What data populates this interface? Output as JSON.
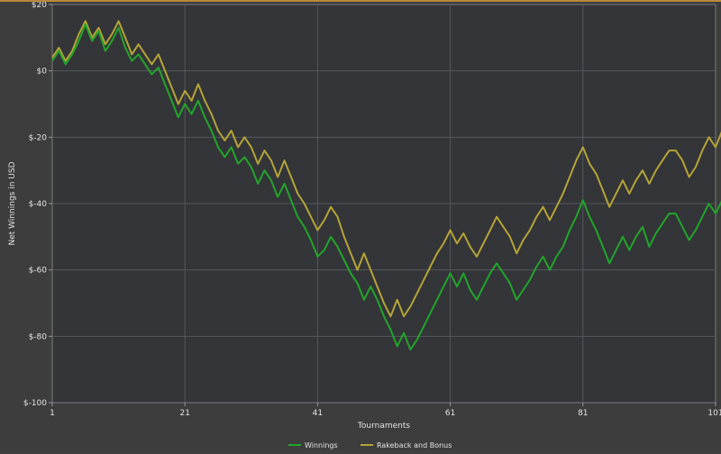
{
  "chart_data": {
    "type": "line",
    "title": "",
    "xlabel": "Tournaments",
    "ylabel": "Net Winnings in USD",
    "xlim": [
      1,
      101
    ],
    "ylim": [
      -100,
      20
    ],
    "x_ticks": [
      "1",
      "21",
      "41",
      "61",
      "81",
      "101"
    ],
    "y_ticks": [
      "$20",
      "$0",
      "$-20",
      "$-40",
      "$-60",
      "$-80",
      "$-100"
    ],
    "y_tick_values": [
      20,
      0,
      -20,
      -40,
      -60,
      -80,
      -100
    ],
    "x_tick_values": [
      1,
      21,
      41,
      61,
      81,
      101
    ],
    "grid": true,
    "legend_position": "bottom-center",
    "series": [
      {
        "name": "Winnings",
        "color": "#22a52a",
        "values": [
          3,
          6,
          2,
          5,
          9,
          14,
          9,
          12,
          6,
          9,
          13,
          7,
          3,
          5,
          2,
          -1,
          1,
          -4,
          -9,
          -14,
          -10,
          -13,
          -9,
          -14,
          -18,
          -23,
          -26,
          -23,
          -28,
          -26,
          -29,
          -34,
          -30,
          -33,
          -38,
          -34,
          -39,
          -44,
          -47,
          -51,
          -56,
          -54,
          -50,
          -53,
          -57,
          -61,
          -64,
          -69,
          -65,
          -69,
          -74,
          -78,
          -83,
          -79,
          -84,
          -81,
          -77,
          -73,
          -69,
          -65,
          -61,
          -65,
          -61,
          -66,
          -69,
          -65,
          -61,
          -58,
          -61,
          -64,
          -69,
          -66,
          -63,
          -59,
          -56,
          -60,
          -56,
          -53,
          -48,
          -44,
          -39,
          -44,
          -48,
          -53,
          -58,
          -54,
          -50,
          -54,
          -50,
          -47,
          -53,
          -49,
          -46,
          -43,
          -43,
          -47,
          -51,
          -48,
          -44,
          -40,
          -43,
          -39,
          -44
        ]
      },
      {
        "name": "Rakeback and Bonus",
        "color": "#b5a437",
        "values": [
          4,
          7,
          3,
          6,
          11,
          15,
          10,
          13,
          8,
          11,
          15,
          10,
          5,
          8,
          5,
          2,
          5,
          0,
          -5,
          -10,
          -6,
          -9,
          -4,
          -9,
          -13,
          -18,
          -21,
          -18,
          -23,
          -20,
          -23,
          -28,
          -24,
          -27,
          -32,
          -27,
          -32,
          -37,
          -40,
          -44,
          -48,
          -45,
          -41,
          -44,
          -50,
          -55,
          -60,
          -55,
          -60,
          -65,
          -70,
          -74,
          -69,
          -74,
          -71,
          -67,
          -63,
          -59,
          -55,
          -52,
          -48,
          -52,
          -49,
          -53,
          -56,
          -52,
          -48,
          -44,
          -47,
          -50,
          -55,
          -51,
          -48,
          -44,
          -41,
          -45,
          -41,
          -37,
          -32,
          -27,
          -23,
          -28,
          -31,
          -36,
          -41,
          -37,
          -33,
          -37,
          -33,
          -30,
          -34,
          -30,
          -27,
          -24,
          -24,
          -27,
          -32,
          -29,
          -24,
          -20,
          -23,
          -18,
          -23
        ]
      }
    ]
  }
}
